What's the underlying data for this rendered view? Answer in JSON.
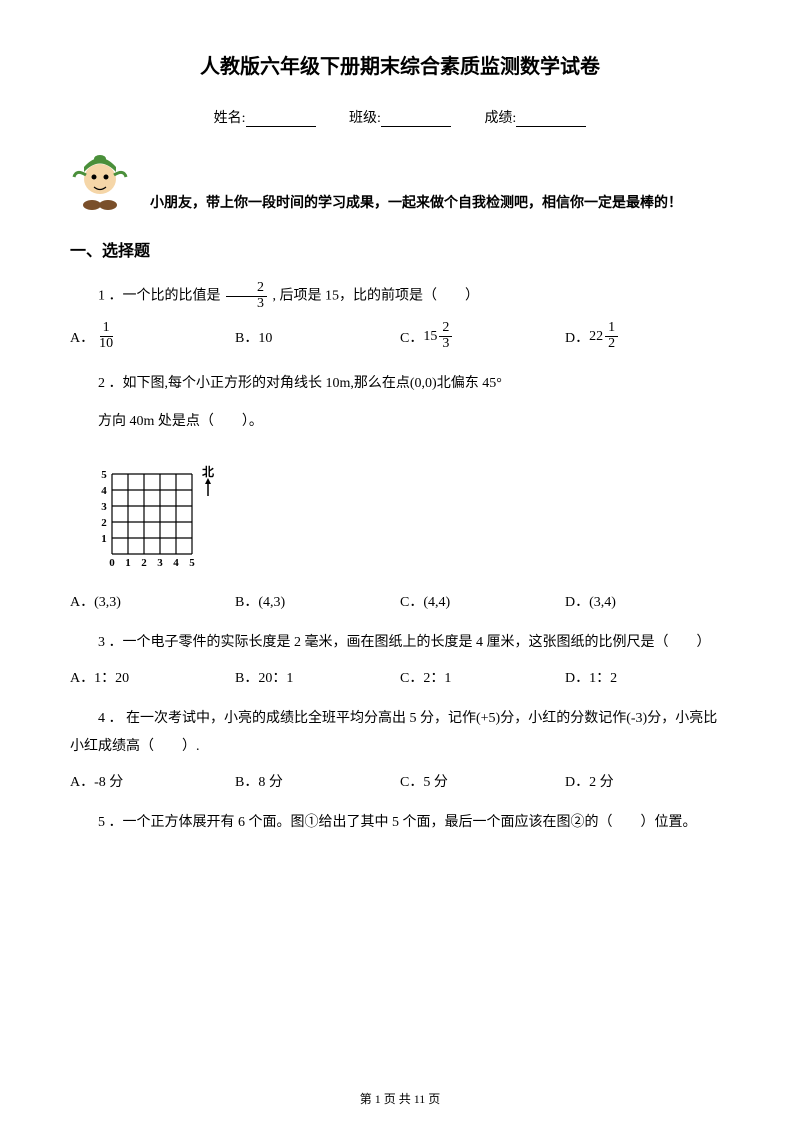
{
  "title": "人教版六年级下册期末综合素质监测数学试卷",
  "fill": {
    "name_label": "姓名:",
    "class_label": "班级:",
    "score_label": "成绩:"
  },
  "encourage": "小朋友，带上你一段时间的学习成果，一起来做个自我检测吧，相信你一定是最棒的！",
  "section1": "一、选择题",
  "q1": {
    "prefix": "1 ．一个比的比值是",
    "frac_n": "2",
    "frac_d": "3",
    "suffix": ", 后项是 15，比的前项是（　　）",
    "A_label": "A．",
    "A_n": "1",
    "A_d": "10",
    "B": "B．10",
    "C_label": "C．",
    "C_whole": "15",
    "C_n": "2",
    "C_d": "3",
    "D_label": "D．",
    "D_whole": "22",
    "D_n": "1",
    "D_d": "2"
  },
  "q2": {
    "l1": "2 ．如下图,每个小正方形的对角线长 10m,那么在点(0,0)北偏东 45°",
    "l2": "方向 40m 处是点（　　）。",
    "A": "A．(3,3)",
    "B": "B．(4,3)",
    "C": "C．(4,4)",
    "D": "D．(3,4)",
    "grid": {
      "size": 5,
      "x_labels": [
        "0",
        "1",
        "2",
        "3",
        "4",
        "5"
      ],
      "y_labels": [
        "1",
        "2",
        "3",
        "4",
        "5"
      ],
      "north_label": "北"
    }
  },
  "q3": {
    "text": "3 ．一个电子零件的实际长度是 2 毫米，画在图纸上的长度是 4 厘米，这张图纸的比例尺是（　　）",
    "A": "A．1：20",
    "B": "B．20：1",
    "C": "C．2：1",
    "D": "D．1：2"
  },
  "q4": {
    "text": "4 ． 在一次考试中，小亮的成绩比全班平均分高出 5 分，记作(+5)分，小红的分数记作(-3)分，小亮比小红成绩高（　　）.",
    "A": "A．-8 分",
    "B": "B．8 分",
    "C": "C．5 分",
    "D": "D．2 分"
  },
  "q5": {
    "text": "5 ．一个正方体展开有 6 个面。图①给出了其中 5 个面，最后一个面应该在图②的（　　）位置。"
  },
  "footer": "第 1 页 共 11 页",
  "colors": {
    "text": "#000000",
    "hat": "#4a8f3a",
    "skin": "#f5d6a8",
    "shoe": "#7a4f2a"
  }
}
